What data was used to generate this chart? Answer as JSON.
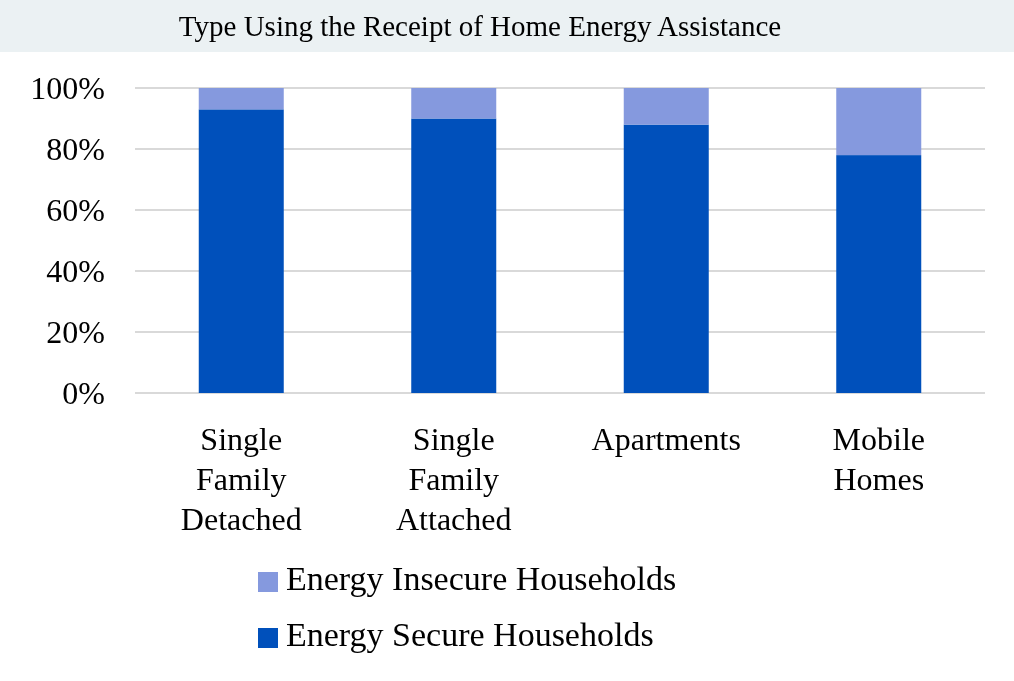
{
  "chart_data": {
    "type": "bar",
    "title": "Type Using the Receipt of Home Energy Assistance",
    "stacked": true,
    "categories": [
      "Single Family Detached",
      "Single Family Attached",
      "Apartments",
      "Mobile Homes"
    ],
    "series": [
      {
        "name": "Energy Secure Households",
        "color": "#0050bb",
        "values": [
          93,
          90,
          88,
          78
        ]
      },
      {
        "name": "Energy Insecure Households",
        "color": "#8599de",
        "values": [
          7,
          10,
          12,
          22
        ]
      }
    ],
    "ylim": [
      0,
      100
    ],
    "yticks": [
      {
        "value": 0,
        "label": "0%"
      },
      {
        "value": 20,
        "label": "20%"
      },
      {
        "value": 40,
        "label": "40%"
      },
      {
        "value": 60,
        "label": "60%"
      },
      {
        "value": 80,
        "label": "80%"
      },
      {
        "value": 100,
        "label": "100%"
      }
    ],
    "grid": "y",
    "legend": "bottom"
  }
}
